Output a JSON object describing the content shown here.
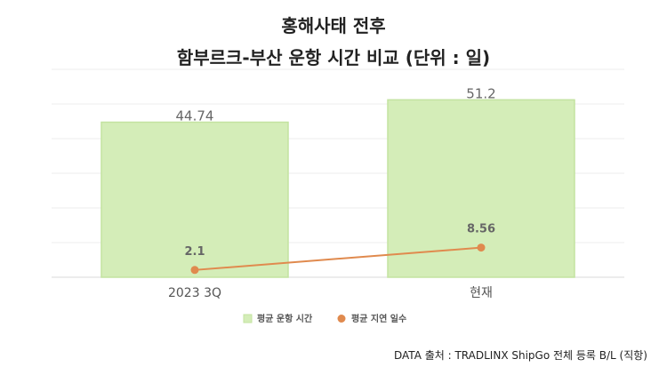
{
  "chart_data": {
    "type": "bar",
    "title": "홍해사태 전후",
    "subtitle": "함부르크-부산 운항 시간 비교 (단위 : 일)",
    "categories": [
      "2023 3Q",
      "현재"
    ],
    "ylim": [
      0,
      60
    ],
    "grid": true,
    "legend_position": "bottom",
    "series": [
      {
        "name": "평균 운항 시간",
        "type": "bar",
        "color": "#d4edb8",
        "stroke": "#c3e3a0",
        "values": [
          44.74,
          51.2
        ],
        "labels": [
          "44.74",
          "51.2"
        ]
      },
      {
        "name": "평균 지연 일수",
        "type": "line",
        "color": "#e08a4e",
        "values": [
          2.1,
          8.56
        ],
        "labels": [
          "2.1",
          "8.56"
        ]
      }
    ],
    "source": "DATA 출처 : TRADLINX ShipGo 전체 등록 B/L (직항)"
  }
}
